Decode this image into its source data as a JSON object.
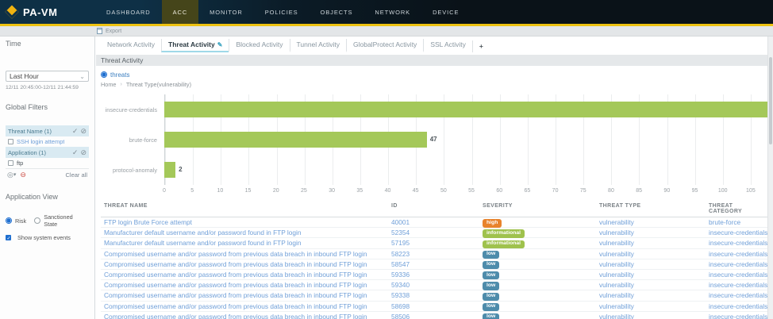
{
  "nav": {
    "brand": "PA-VM",
    "tabs": [
      {
        "label": "DASHBOARD",
        "active": false
      },
      {
        "label": "ACC",
        "active": true
      },
      {
        "label": "MONITOR",
        "active": false
      },
      {
        "label": "POLICIES",
        "active": false
      },
      {
        "label": "OBJECTS",
        "active": false
      },
      {
        "label": "NETWORK",
        "active": false
      },
      {
        "label": "DEVICE",
        "active": false
      }
    ]
  },
  "toolbar": {
    "export_label": "Export"
  },
  "sidebar": {
    "time": {
      "label": "Time",
      "selected": "Last Hour",
      "range": "12/11 20:45:00-12/11 21:44:59"
    },
    "global_filters": {
      "label": "Global Filters",
      "groups": [
        {
          "name": "Threat Name (1)",
          "items": [
            "SSH login attempt"
          ]
        },
        {
          "name": "Application (1)",
          "items": [
            "ftp"
          ]
        }
      ],
      "clear_all": "Clear all"
    },
    "application_view": {
      "label": "Application View",
      "options": [
        {
          "label": "Risk",
          "selected": true
        },
        {
          "label": "Sanctioned State",
          "selected": false
        }
      ],
      "checkbox": {
        "label": "Show system events",
        "checked": true
      }
    }
  },
  "content": {
    "tabs": [
      {
        "label": "Network Activity",
        "active": false
      },
      {
        "label": "Threat Activity",
        "active": true
      },
      {
        "label": "Blocked Activity",
        "active": false
      },
      {
        "label": "Tunnel Activity",
        "active": false
      },
      {
        "label": "GlobalProtect Activity",
        "active": false
      },
      {
        "label": "SSL Activity",
        "active": false
      }
    ],
    "add_tab": "+",
    "panel": {
      "title": "Threat Activity",
      "radio_label": "threats",
      "breadcrumb": {
        "home": "Home",
        "current": "Threat Type(vulnerability)"
      }
    }
  },
  "chart_data": {
    "type": "bar",
    "orientation": "horizontal",
    "title": "Threat Activity",
    "categories": [
      "insecure-credentials",
      "brute-force",
      "protocol-anomaly"
    ],
    "values": [
      108,
      47,
      2
    ],
    "value_labels": [
      "",
      "47",
      "2"
    ],
    "xlabel": "",
    "ylabel": "",
    "xlim": [
      0,
      105
    ],
    "xtick_interval": 5,
    "grid": true,
    "legend": "none",
    "bar_color": "#a4c859"
  },
  "table": {
    "columns": [
      "Threat Name",
      "ID",
      "Severity",
      "Threat Type",
      "Threat Category"
    ],
    "rows": [
      {
        "name": "FTP login Brute Force attempt",
        "id": "40001",
        "severity": "high",
        "type": "vulnerability",
        "category": "brute-force"
      },
      {
        "name": "Manufacturer default username and/or password found in FTP login",
        "id": "52354",
        "severity": "informational",
        "type": "vulnerability",
        "category": "insecure-credentials"
      },
      {
        "name": "Manufacturer default username and/or password found in FTP login",
        "id": "57195",
        "severity": "informational",
        "type": "vulnerability",
        "category": "insecure-credentials"
      },
      {
        "name": "Compromised username and/or password from previous data breach in inbound FTP login",
        "id": "58223",
        "severity": "low",
        "type": "vulnerability",
        "category": "insecure-credentials"
      },
      {
        "name": "Compromised username and/or password from previous data breach in inbound FTP login",
        "id": "58547",
        "severity": "low",
        "type": "vulnerability",
        "category": "insecure-credentials"
      },
      {
        "name": "Compromised username and/or password from previous data breach in inbound FTP login",
        "id": "59336",
        "severity": "low",
        "type": "vulnerability",
        "category": "insecure-credentials"
      },
      {
        "name": "Compromised username and/or password from previous data breach in inbound FTP login",
        "id": "59340",
        "severity": "low",
        "type": "vulnerability",
        "category": "insecure-credentials"
      },
      {
        "name": "Compromised username and/or password from previous data breach in inbound FTP login",
        "id": "59338",
        "severity": "low",
        "type": "vulnerability",
        "category": "insecure-credentials"
      },
      {
        "name": "Compromised username and/or password from previous data breach in inbound FTP login",
        "id": "58698",
        "severity": "low",
        "type": "vulnerability",
        "category": "insecure-credentials"
      },
      {
        "name": "Compromised username and/or password from previous data breach in inbound FTP login",
        "id": "58506",
        "severity": "low",
        "type": "vulnerability",
        "category": "insecure-credentials"
      }
    ]
  },
  "colors": {
    "accent_yellow": "#edc211",
    "nav_bg": "#0e3046",
    "link": "#6f9fd8",
    "bar": "#a4c859",
    "active_tab_underline": "#9fd9e8",
    "severity": {
      "high": "#e8832c",
      "informational": "#9fc24d",
      "low": "#4e8cab"
    }
  }
}
